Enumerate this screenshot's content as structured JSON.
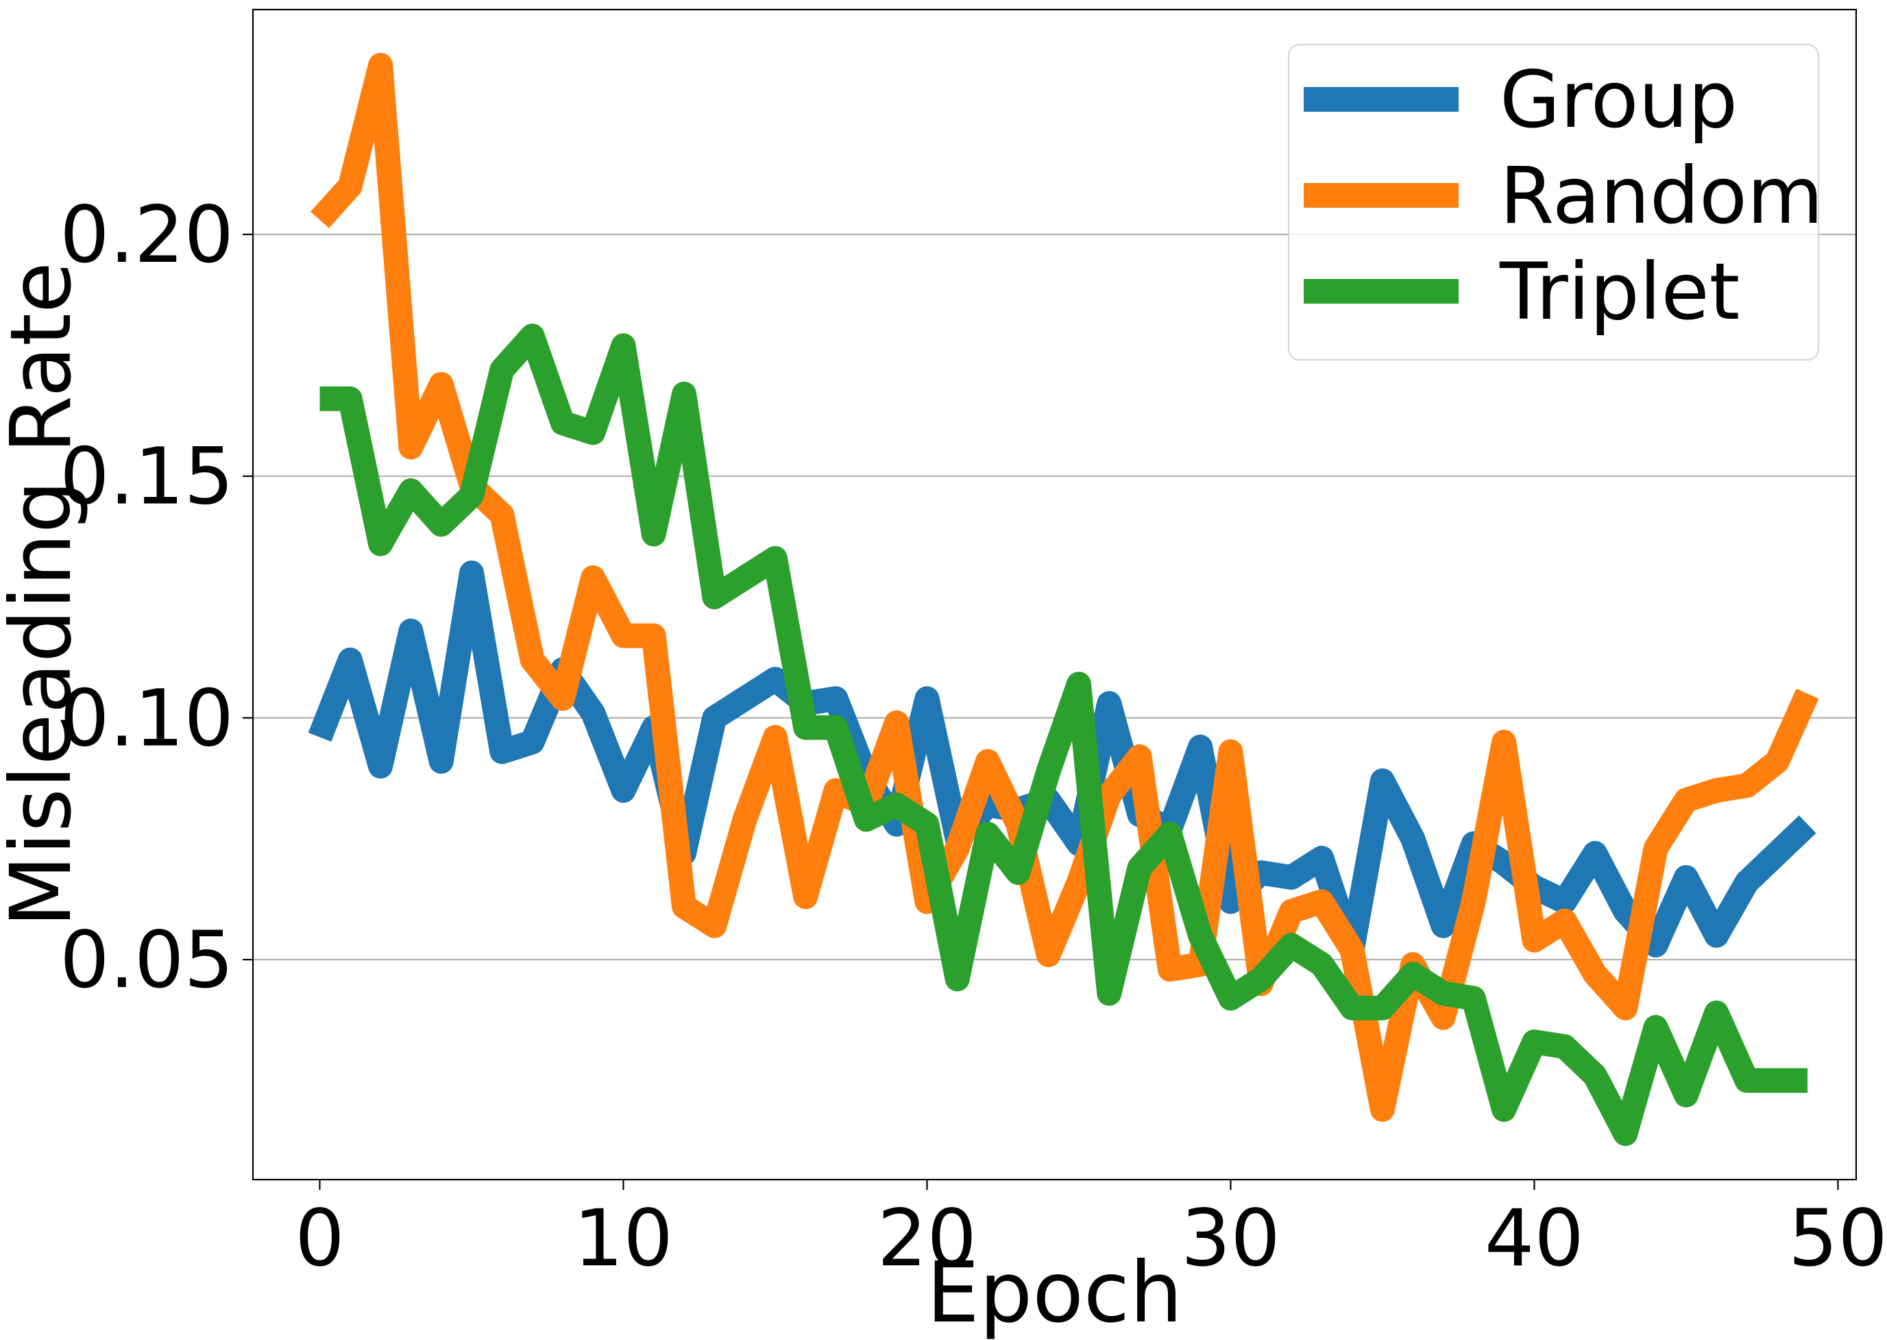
{
  "chart_data": {
    "type": "line",
    "xlabel": "Epoch",
    "ylabel": "Misleading Rate",
    "xlim": [
      -2.2,
      50.6
    ],
    "ylim": [
      0.0045,
      0.2465
    ],
    "xticks": [
      0,
      10,
      20,
      30,
      40,
      50
    ],
    "xtick_labels": [
      "0",
      "10",
      "20",
      "30",
      "40",
      "50"
    ],
    "yticks": [
      0.05,
      0.1,
      0.15,
      0.2
    ],
    "ytick_labels": [
      "0.05",
      "0.10",
      "0.15",
      "0.20"
    ],
    "grid": "horizontal",
    "legend_position": "top-right",
    "x": [
      0,
      1,
      2,
      3,
      4,
      5,
      6,
      7,
      8,
      9,
      10,
      11,
      12,
      13,
      14,
      15,
      16,
      17,
      18,
      19,
      20,
      21,
      22,
      23,
      24,
      25,
      26,
      27,
      28,
      29,
      30,
      31,
      32,
      33,
      34,
      35,
      36,
      37,
      38,
      39,
      40,
      41,
      42,
      43,
      44,
      45,
      46,
      47,
      48,
      49
    ],
    "series": [
      {
        "name": "Group",
        "color": "#1f77b4",
        "values": [
          0.096,
          0.112,
          0.09,
          0.118,
          0.091,
          0.13,
          0.093,
          0.095,
          0.11,
          0.101,
          0.085,
          0.098,
          0.072,
          0.1,
          0.104,
          0.108,
          0.103,
          0.104,
          0.088,
          0.078,
          0.104,
          0.075,
          0.082,
          0.081,
          0.083,
          0.074,
          0.103,
          0.08,
          0.077,
          0.094,
          0.062,
          0.068,
          0.067,
          0.071,
          0.052,
          0.087,
          0.075,
          0.057,
          0.074,
          0.07,
          0.065,
          0.062,
          0.072,
          0.06,
          0.053,
          0.067,
          0.055,
          0.066,
          0.072,
          0.078
        ]
      },
      {
        "name": "Random",
        "color": "#ff7f0e",
        "values": [
          0.203,
          0.21,
          0.235,
          0.156,
          0.169,
          0.148,
          0.142,
          0.112,
          0.104,
          0.129,
          0.117,
          0.117,
          0.061,
          0.057,
          0.079,
          0.096,
          0.063,
          0.085,
          0.082,
          0.099,
          0.062,
          0.073,
          0.091,
          0.078,
          0.051,
          0.066,
          0.084,
          0.092,
          0.048,
          0.049,
          0.093,
          0.045,
          0.06,
          0.062,
          0.052,
          0.019,
          0.049,
          0.038,
          0.062,
          0.095,
          0.054,
          0.058,
          0.047,
          0.04,
          0.073,
          0.083,
          0.085,
          0.086,
          0.091,
          0.105
        ]
      },
      {
        "name": "Triplet",
        "color": "#2ca02c",
        "values": [
          0.166,
          0.166,
          0.136,
          0.147,
          0.14,
          0.146,
          0.172,
          0.179,
          0.161,
          0.159,
          0.177,
          0.138,
          0.167,
          0.125,
          0.129,
          0.133,
          0.098,
          0.098,
          0.079,
          0.082,
          0.078,
          0.046,
          0.076,
          0.068,
          0.089,
          0.107,
          0.043,
          0.069,
          0.076,
          0.055,
          0.042,
          0.046,
          0.053,
          0.049,
          0.04,
          0.04,
          0.047,
          0.043,
          0.042,
          0.019,
          0.033,
          0.032,
          0.026,
          0.014,
          0.036,
          0.022,
          0.039,
          0.025,
          0.025,
          0.025
        ]
      }
    ]
  }
}
